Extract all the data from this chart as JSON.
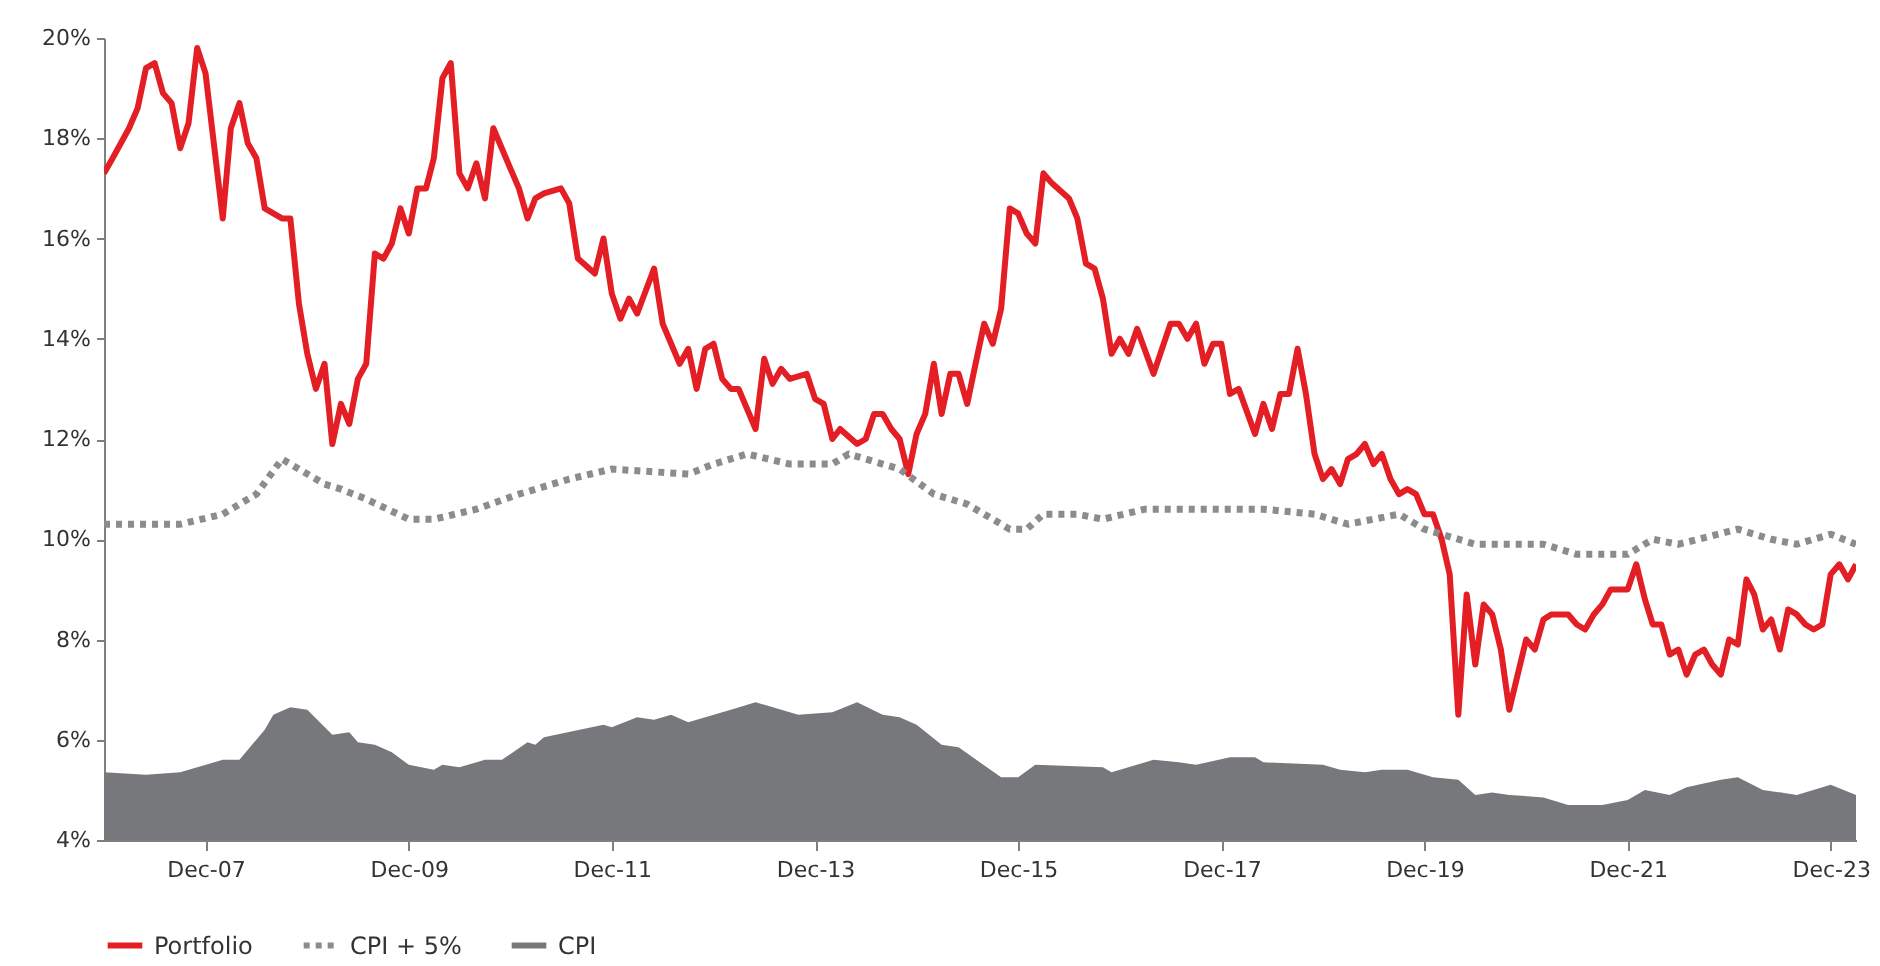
{
  "chart_data": {
    "type": "line",
    "legend": "bottom",
    "grid": false,
    "marker": "none",
    "xlim": [
      "2006-12",
      "2024-03"
    ],
    "xticks": [
      {
        "value": "2007-12",
        "label": "Dec-07"
      },
      {
        "value": "2009-12",
        "label": "Dec-09"
      },
      {
        "value": "2011-12",
        "label": "Dec-11"
      },
      {
        "value": "2013-12",
        "label": "Dec-13"
      },
      {
        "value": "2015-12",
        "label": "Dec-15"
      },
      {
        "value": "2017-12",
        "label": "Dec-17"
      },
      {
        "value": "2019-12",
        "label": "Dec-19"
      },
      {
        "value": "2021-12",
        "label": "Dec-21"
      },
      {
        "value": "2023-12",
        "label": "Dec-23"
      }
    ],
    "ylim": [
      4,
      20
    ],
    "yticks": [
      {
        "value": 4,
        "label": "4%"
      },
      {
        "value": 6,
        "label": "6%"
      },
      {
        "value": 8,
        "label": "8%"
      },
      {
        "value": 10,
        "label": "10%"
      },
      {
        "value": 12,
        "label": "12%"
      },
      {
        "value": 14,
        "label": "14%"
      },
      {
        "value": 16,
        "label": "16%"
      },
      {
        "value": 18,
        "label": "18%"
      },
      {
        "value": 20,
        "label": "20%"
      }
    ],
    "series": [
      {
        "name": "Portfolio",
        "line_style": "solid",
        "color": "#e31e24",
        "x": [
          "2006-12",
          "2007-01",
          "2007-03",
          "2007-04",
          "2007-05",
          "2007-06",
          "2007-07",
          "2007-08",
          "2007-09",
          "2007-10",
          "2007-11",
          "2007-12",
          "2008-02",
          "2008-03",
          "2008-04",
          "2008-05",
          "2008-06",
          "2008-07",
          "2008-09",
          "2008-10",
          "2008-11",
          "2008-12",
          "2009-01",
          "2009-02",
          "2009-03",
          "2009-04",
          "2009-05",
          "2009-06",
          "2009-07",
          "2009-08",
          "2009-09",
          "2009-10",
          "2009-11",
          "2009-12",
          "2010-01",
          "2010-02",
          "2010-03",
          "2010-04",
          "2010-05",
          "2010-06",
          "2010-07",
          "2010-08",
          "2010-09",
          "2010-10",
          "2010-12",
          "2011-01",
          "2011-02",
          "2011-03",
          "2011-04",
          "2011-06",
          "2011-07",
          "2011-08",
          "2011-10",
          "2011-11",
          "2011-12",
          "2012-01",
          "2012-02",
          "2012-03",
          "2012-05",
          "2012-06",
          "2012-08",
          "2012-09",
          "2012-10",
          "2012-11",
          "2012-12",
          "2013-01",
          "2013-02",
          "2013-03",
          "2013-05",
          "2013-06",
          "2013-07",
          "2013-08",
          "2013-09",
          "2013-11",
          "2013-12",
          "2014-01",
          "2014-02",
          "2014-03",
          "2014-05",
          "2014-06",
          "2014-07",
          "2014-08",
          "2014-09",
          "2014-10",
          "2014-11",
          "2014-12",
          "2015-01",
          "2015-02",
          "2015-03",
          "2015-04",
          "2015-05",
          "2015-06",
          "2015-07",
          "2015-08",
          "2015-09",
          "2015-10",
          "2015-11",
          "2015-12",
          "2016-01",
          "2016-02",
          "2016-03",
          "2016-04",
          "2016-06",
          "2016-07",
          "2016-08",
          "2016-09",
          "2016-10",
          "2016-11",
          "2016-12",
          "2017-01",
          "2017-02",
          "2017-04",
          "2017-06",
          "2017-07",
          "2017-08",
          "2017-09",
          "2017-10",
          "2017-11",
          "2017-12",
          "2018-01",
          "2018-02",
          "2018-04",
          "2018-05",
          "2018-06",
          "2018-07",
          "2018-08",
          "2018-09",
          "2018-10",
          "2018-11",
          "2018-12",
          "2019-01",
          "2019-02",
          "2019-03",
          "2019-04",
          "2019-05",
          "2019-06",
          "2019-07",
          "2019-08",
          "2019-09",
          "2019-10",
          "2019-11",
          "2019-12",
          "2020-01",
          "2020-02",
          "2020-03",
          "2020-04",
          "2020-05",
          "2020-06",
          "2020-07",
          "2020-08",
          "2020-09",
          "2020-10",
          "2020-12",
          "2021-01",
          "2021-02",
          "2021-03",
          "2021-05",
          "2021-06",
          "2021-07",
          "2021-08",
          "2021-09",
          "2021-10",
          "2021-12",
          "2022-01",
          "2022-02",
          "2022-03",
          "2022-04",
          "2022-05",
          "2022-06",
          "2022-07",
          "2022-08",
          "2022-09",
          "2022-10",
          "2022-11",
          "2022-12",
          "2023-01",
          "2023-02",
          "2023-03",
          "2023-04",
          "2023-05",
          "2023-06",
          "2023-07",
          "2023-08",
          "2023-09",
          "2023-10",
          "2023-11",
          "2023-12",
          "2024-01",
          "2024-02",
          "2024-03"
        ],
        "values": [
          17.3,
          17.6,
          18.2,
          18.6,
          19.4,
          19.5,
          18.9,
          18.7,
          17.8,
          18.3,
          19.8,
          19.3,
          16.4,
          18.2,
          18.7,
          17.9,
          17.6,
          16.6,
          16.4,
          16.4,
          14.7,
          13.7,
          13.0,
          13.5,
          11.9,
          12.7,
          12.3,
          13.2,
          13.5,
          15.7,
          15.6,
          15.9,
          16.6,
          16.1,
          17.0,
          17.0,
          17.6,
          19.2,
          19.5,
          17.3,
          17.0,
          17.5,
          16.8,
          18.2,
          17.4,
          17.0,
          16.4,
          16.8,
          16.9,
          17.0,
          16.7,
          15.6,
          15.3,
          16.0,
          14.9,
          14.4,
          14.8,
          14.5,
          15.4,
          14.3,
          13.5,
          13.8,
          13.0,
          13.8,
          13.9,
          13.2,
          13.0,
          13.0,
          12.2,
          13.6,
          13.1,
          13.4,
          13.2,
          13.3,
          12.8,
          12.7,
          12.0,
          12.2,
          11.9,
          12.0,
          12.5,
          12.5,
          12.2,
          12.0,
          11.3,
          12.1,
          12.5,
          13.5,
          12.5,
          13.3,
          13.3,
          12.7,
          13.5,
          14.3,
          13.9,
          14.6,
          16.6,
          16.5,
          16.1,
          15.9,
          17.3,
          17.1,
          16.8,
          16.4,
          15.5,
          15.4,
          14.8,
          13.7,
          14.0,
          13.7,
          14.2,
          13.3,
          14.3,
          14.3,
          14.0,
          14.3,
          13.5,
          13.9,
          13.9,
          12.9,
          13.0,
          12.1,
          12.7,
          12.2,
          12.9,
          12.9,
          13.8,
          12.9,
          11.7,
          11.2,
          11.4,
          11.1,
          11.6,
          11.7,
          11.9,
          11.5,
          11.7,
          11.2,
          10.9,
          11.0,
          10.9,
          10.5,
          10.5,
          10.0,
          9.3,
          6.5,
          8.9,
          7.5,
          8.7,
          8.5,
          7.8,
          6.6,
          8.0,
          7.8,
          8.4,
          8.5,
          8.5,
          8.3,
          8.2,
          8.5,
          8.7,
          9.0,
          9.0,
          9.5,
          8.8,
          8.3,
          8.3,
          7.7,
          7.8,
          7.3,
          7.7,
          7.8,
          7.5,
          7.3,
          8.0,
          7.9,
          9.2,
          8.9,
          8.2,
          8.4,
          7.8,
          8.6,
          8.5,
          8.3,
          8.2,
          8.3,
          9.3,
          9.5,
          9.2,
          9.5
        ]
      },
      {
        "name": "CPI + 5%",
        "line_style": "dotted",
        "color": "#8c8c8c",
        "x": [
          "2006-12",
          "2007-09",
          "2008-02",
          "2008-06",
          "2008-09",
          "2008-11",
          "2009-02",
          "2009-04",
          "2009-07",
          "2009-12",
          "2010-03",
          "2010-08",
          "2011-01",
          "2011-07",
          "2011-12",
          "2012-09",
          "2012-12",
          "2013-04",
          "2013-09",
          "2014-02",
          "2014-04",
          "2014-08",
          "2014-10",
          "2015-02",
          "2015-06",
          "2015-11",
          "2016-01",
          "2016-03",
          "2016-07",
          "2016-10",
          "2017-03",
          "2017-09",
          "2018-01",
          "2018-05",
          "2018-11",
          "2019-03",
          "2019-09",
          "2019-12",
          "2020-06",
          "2021-02",
          "2021-06",
          "2021-12",
          "2022-03",
          "2022-06",
          "2023-01",
          "2023-05",
          "2023-08",
          "2023-12",
          "2024-03"
        ],
        "values": [
          10.3,
          10.3,
          10.5,
          10.9,
          11.6,
          11.4,
          11.1,
          11.0,
          10.8,
          10.4,
          10.4,
          10.6,
          10.9,
          11.2,
          11.4,
          11.3,
          11.5,
          11.7,
          11.5,
          11.5,
          11.7,
          11.5,
          11.4,
          10.9,
          10.7,
          10.2,
          10.2,
          10.5,
          10.5,
          10.4,
          10.6,
          10.6,
          10.6,
          10.6,
          10.5,
          10.3,
          10.5,
          10.2,
          9.9,
          9.9,
          9.7,
          9.7,
          10.0,
          9.9,
          10.2,
          10.0,
          9.9,
          10.1,
          9.9
        ]
      },
      {
        "name": "CPI",
        "type": "area",
        "color": "#77787b",
        "x": [
          "2006-12",
          "2007-05",
          "2007-09",
          "2008-02",
          "2008-04",
          "2008-07",
          "2008-08",
          "2008-10",
          "2008-12",
          "2009-03",
          "2009-05",
          "2009-06",
          "2009-08",
          "2009-10",
          "2009-12",
          "2010-03",
          "2010-04",
          "2010-06",
          "2010-09",
          "2010-11",
          "2011-02",
          "2011-03",
          "2011-04",
          "2011-11",
          "2011-12",
          "2012-03",
          "2012-05",
          "2012-07",
          "2012-09",
          "2013-02",
          "2013-05",
          "2013-10",
          "2014-02",
          "2014-05",
          "2014-08",
          "2014-10",
          "2014-12",
          "2015-03",
          "2015-05",
          "2015-10",
          "2015-12",
          "2016-02",
          "2016-10",
          "2016-11",
          "2017-04",
          "2017-07",
          "2017-09",
          "2018-01",
          "2018-04",
          "2018-05",
          "2018-12",
          "2019-02",
          "2019-05",
          "2019-07",
          "2019-10",
          "2020-01",
          "2020-04",
          "2020-06",
          "2020-08",
          "2020-10",
          "2021-02",
          "2021-05",
          "2021-09",
          "2021-12",
          "2022-02",
          "2022-05",
          "2022-07",
          "2022-11",
          "2023-01",
          "2023-04",
          "2023-08",
          "2023-12",
          "2024-03"
        ],
        "values": [
          5.35,
          5.3,
          5.35,
          5.6,
          5.6,
          6.2,
          6.5,
          6.65,
          6.6,
          6.1,
          6.15,
          5.95,
          5.9,
          5.75,
          5.5,
          5.4,
          5.5,
          5.45,
          5.6,
          5.6,
          5.95,
          5.9,
          6.05,
          6.3,
          6.25,
          6.45,
          6.4,
          6.5,
          6.35,
          6.6,
          6.75,
          6.5,
          6.55,
          6.75,
          6.5,
          6.45,
          6.3,
          5.9,
          5.85,
          5.25,
          5.25,
          5.5,
          5.45,
          5.35,
          5.6,
          5.55,
          5.5,
          5.65,
          5.65,
          5.55,
          5.5,
          5.4,
          5.35,
          5.4,
          5.4,
          5.25,
          5.2,
          4.9,
          4.95,
          4.9,
          4.85,
          4.7,
          4.7,
          4.8,
          5.0,
          4.9,
          5.05,
          5.2,
          5.25,
          5.0,
          4.9,
          5.1,
          4.9
        ]
      }
    ]
  }
}
